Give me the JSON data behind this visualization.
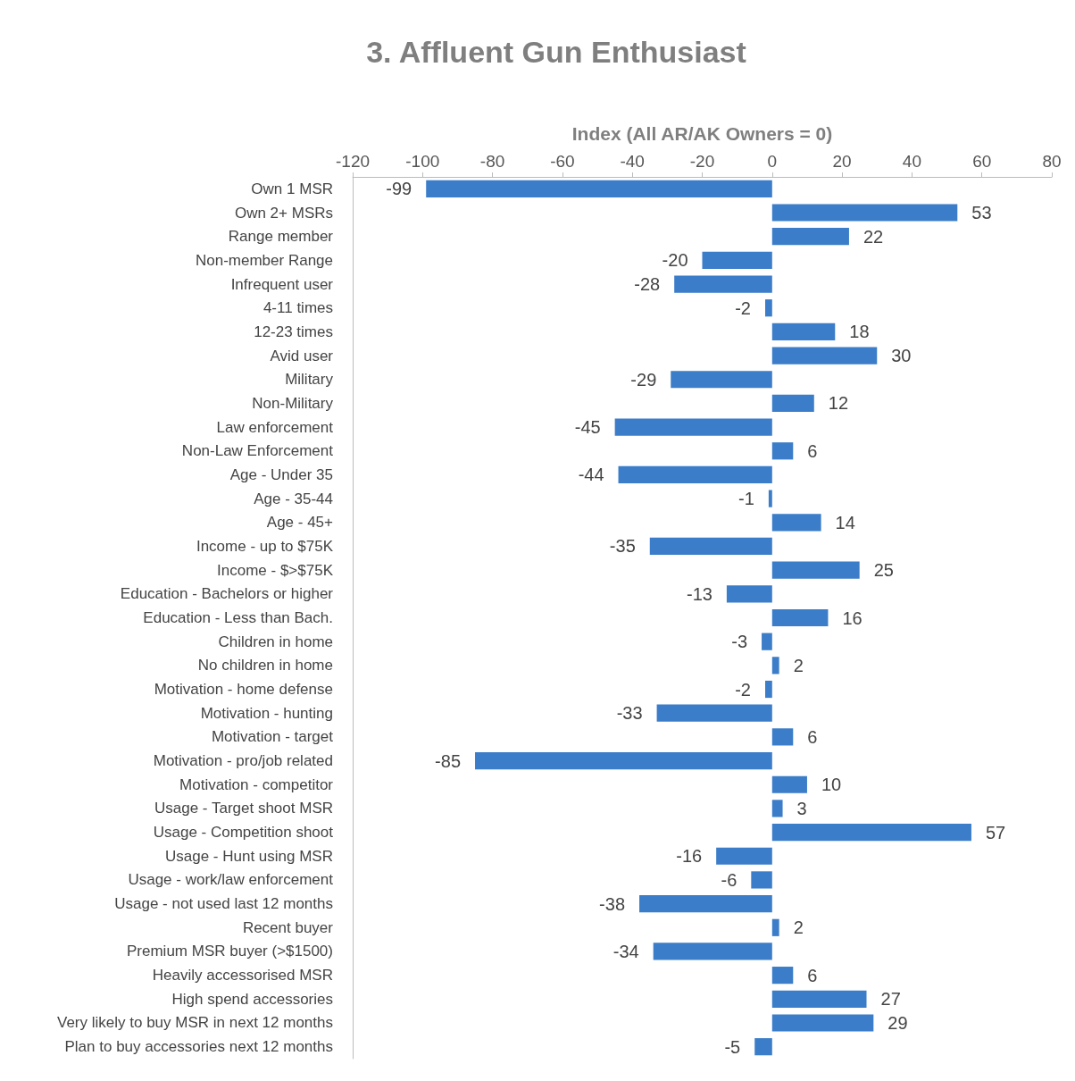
{
  "chart_data": {
    "type": "bar",
    "orientation": "horizontal",
    "title": "3. Affluent Gun Enthusiast",
    "xlabel": "Index (All AR/AK Owners = 0)",
    "categories": [
      "Own 1 MSR",
      "Own 2+ MSRs",
      "Range member",
      "Non-member Range",
      "Infrequent user",
      "4-11 times",
      "12-23 times",
      "Avid user",
      "Military",
      "Non-Military",
      "Law enforcement",
      "Non-Law Enforcement",
      "Age - Under 35",
      "Age - 35-44",
      "Age - 45+",
      "Income - up to $75K",
      "Income - $>$75K",
      "Education - Bachelors or higher",
      "Education - Less than Bach.",
      "Children in home",
      "No children in home",
      "Motivation - home defense",
      "Motivation - hunting",
      "Motivation - target",
      "Motivation - pro/job related",
      "Motivation - competitor",
      "Usage - Target shoot MSR",
      "Usage - Competition shoot",
      "Usage - Hunt using MSR",
      "Usage - work/law enforcement",
      "Usage - not used last 12 months",
      "Recent buyer",
      "Premium MSR buyer (>$1500)",
      "Heavily accessorised MSR",
      "High spend accessories",
      "Very likely to buy MSR in next 12 months",
      "Plan to buy accessories next 12 months"
    ],
    "values": [
      -99,
      53,
      22,
      -20,
      -28,
      -2,
      18,
      30,
      -29,
      12,
      -45,
      6,
      -44,
      -1,
      14,
      -35,
      25,
      -13,
      16,
      -3,
      2,
      -2,
      -33,
      6,
      -85,
      10,
      3,
      57,
      -16,
      -6,
      -38,
      2,
      -34,
      6,
      27,
      29,
      -5
    ],
    "color": "#3b7dc8",
    "xlim": [
      -120,
      80
    ],
    "xticks": [
      -120,
      -100,
      -80,
      -60,
      -40,
      -20,
      0,
      20,
      40,
      60,
      80
    ],
    "data_labels": true
  }
}
